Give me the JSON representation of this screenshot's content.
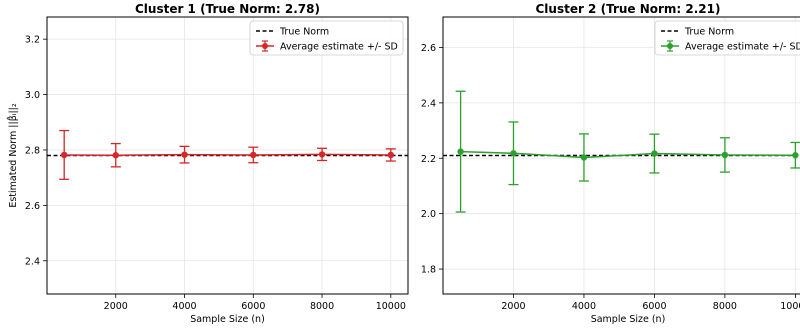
{
  "chart_data": [
    {
      "type": "line",
      "title": "Cluster 1 (True Norm: 2.78)",
      "xlabel": "Sample Size (n)",
      "ylabel": "Estimated Norm ||β̂ᵢ||₂",
      "xlim": [
        0,
        10500
      ],
      "ylim": [
        2.28,
        3.28
      ],
      "xticks": [
        2000,
        4000,
        6000,
        8000,
        10000
      ],
      "yticks": [
        2.4,
        2.6,
        2.8,
        3.0,
        3.2
      ],
      "ytick_labels": [
        "2.4",
        "2.6",
        "2.8",
        "3.0",
        "3.2"
      ],
      "grid": true,
      "legend_position": "top-right",
      "true_norm": 2.78,
      "legend": {
        "true_norm": "True Norm",
        "estimate": "Average estimate +/- SD"
      },
      "colors": {
        "estimate": "#d62728",
        "true_norm": "#000000"
      },
      "series": [
        {
          "name": "Average estimate +/- SD",
          "x": [
            500,
            2000,
            4000,
            6000,
            8000,
            10000
          ],
          "y": [
            2.782,
            2.781,
            2.783,
            2.782,
            2.784,
            2.782
          ],
          "sd": [
            0.088,
            0.042,
            0.03,
            0.028,
            0.022,
            0.022
          ]
        }
      ]
    },
    {
      "type": "line",
      "title": "Cluster 2 (True Norm: 2.21)",
      "xlabel": "Sample Size (n)",
      "ylabel": "",
      "xlim": [
        0,
        10500
      ],
      "ylim": [
        1.71,
        2.71
      ],
      "xticks": [
        2000,
        4000,
        6000,
        8000,
        10000
      ],
      "yticks": [
        1.8,
        2.0,
        2.2,
        2.4,
        2.6
      ],
      "ytick_labels": [
        "1.8",
        "2.0",
        "2.2",
        "2.4",
        "2.6"
      ],
      "grid": true,
      "legend_position": "top-right",
      "true_norm": 2.21,
      "legend": {
        "true_norm": "True Norm",
        "estimate": "Average estimate +/- SD"
      },
      "colors": {
        "estimate": "#2ca02c",
        "true_norm": "#000000"
      },
      "series": [
        {
          "name": "Average estimate +/- SD",
          "x": [
            500,
            2000,
            4000,
            6000,
            8000,
            10000
          ],
          "y": [
            2.224,
            2.218,
            2.203,
            2.217,
            2.212,
            2.211
          ],
          "sd": [
            0.218,
            0.113,
            0.085,
            0.07,
            0.062,
            0.046
          ]
        }
      ]
    }
  ]
}
